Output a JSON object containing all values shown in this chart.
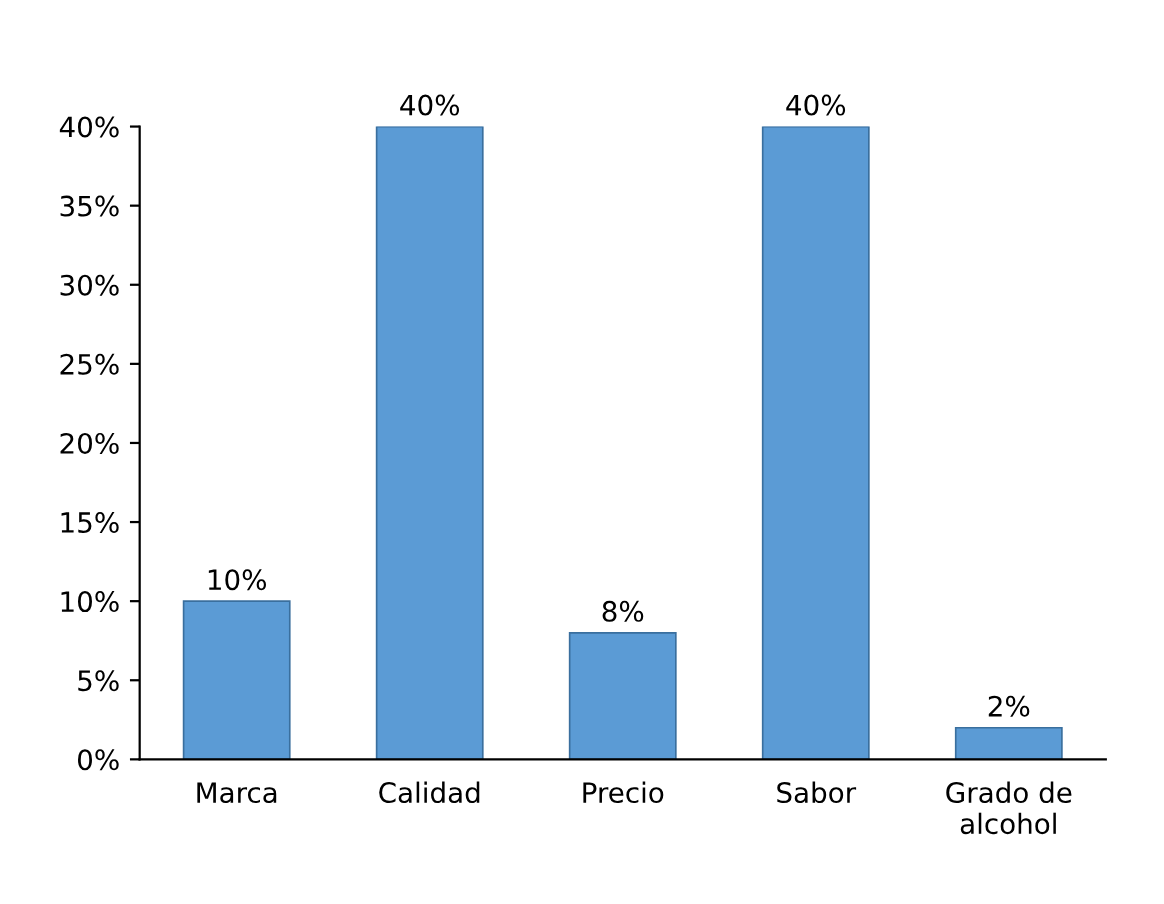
{
  "chart_data": {
    "type": "bar",
    "categories": [
      "Marca",
      "Calidad",
      "Precio",
      "Sabor",
      "Grado de alcohol"
    ],
    "values": [
      10,
      40,
      8,
      40,
      2
    ],
    "value_labels": [
      "10%",
      "40%",
      "8%",
      "40%",
      "2%"
    ],
    "color": "#5b9bd5",
    "ylim": [
      0,
      40
    ],
    "yticks": [
      {
        "value": 0,
        "label": "0%"
      },
      {
        "value": 5,
        "label": "5%"
      },
      {
        "value": 10,
        "label": "10%"
      },
      {
        "value": 15,
        "label": "15%"
      },
      {
        "value": 20,
        "label": "20%"
      },
      {
        "value": 25,
        "label": "25%"
      },
      {
        "value": 30,
        "label": "30%"
      },
      {
        "value": 35,
        "label": "35%"
      },
      {
        "value": 40,
        "label": "40%"
      }
    ],
    "grid": false,
    "legend": false
  }
}
